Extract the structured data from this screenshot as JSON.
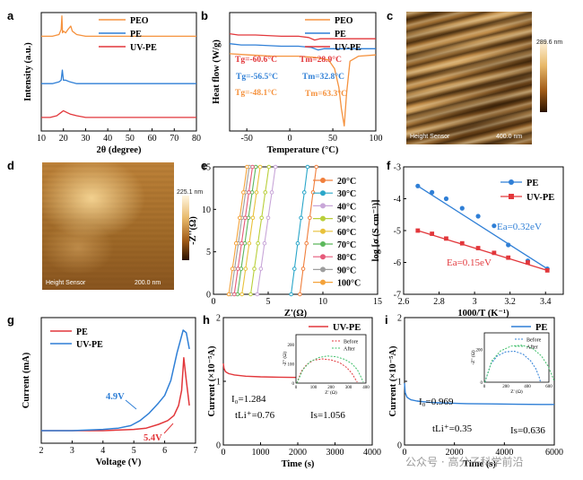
{
  "panels": {
    "a": "a",
    "b": "b",
    "c": "c",
    "d": "d",
    "e": "e",
    "f": "f",
    "g": "g",
    "h": "h",
    "i": "i"
  },
  "afm": {
    "c_scale": "289.6 nm",
    "c_caption": "Height Sensor",
    "c_bar": "400.0 nm",
    "d_scale": "225.1 nm",
    "d_caption": "Height Sensor",
    "d_bar": "200.0 nm"
  },
  "watermark": "公众号 · 高分子科学前沿",
  "chart_data": [
    {
      "id": "a",
      "type": "line",
      "xlabel": "2θ (degree)",
      "ylabel": "Intensity (a.u.)",
      "xlim": [
        10,
        80
      ],
      "xticks": [
        10,
        20,
        30,
        40,
        50,
        60,
        70,
        80
      ],
      "legend": [
        "PEO",
        "PE",
        "UV-PE"
      ],
      "colors": [
        "#f5923e",
        "#2f7fd6",
        "#e2373b"
      ],
      "series": [
        {
          "name": "PEO",
          "x": [
            10,
            15,
            18,
            19,
            19.3,
            19.6,
            20,
            21,
            22,
            23.3,
            24,
            26,
            30,
            40,
            50,
            60,
            70,
            80
          ],
          "y": [
            0.86,
            0.86,
            0.87,
            0.9,
            0.98,
            0.88,
            0.89,
            0.88,
            0.9,
            0.92,
            0.89,
            0.87,
            0.86,
            0.86,
            0.86,
            0.86,
            0.86,
            0.86
          ]
        },
        {
          "name": "PE",
          "x": [
            10,
            15,
            18,
            19,
            19.5,
            20,
            21,
            23,
            26,
            30,
            40,
            50,
            60,
            70,
            80
          ],
          "y": [
            0.58,
            0.58,
            0.59,
            0.6,
            0.66,
            0.6,
            0.6,
            0.59,
            0.58,
            0.58,
            0.58,
            0.58,
            0.58,
            0.58,
            0.58
          ]
        },
        {
          "name": "UV-PE",
          "x": [
            10,
            14,
            17,
            19,
            20,
            21.5,
            23,
            26,
            30,
            40,
            50,
            60,
            70,
            80
          ],
          "y": [
            0.38,
            0.38,
            0.39,
            0.41,
            0.42,
            0.41,
            0.4,
            0.39,
            0.38,
            0.38,
            0.38,
            0.38,
            0.38,
            0.38
          ]
        }
      ]
    },
    {
      "id": "b",
      "type": "line",
      "xlabel": "Temperature (°C)",
      "ylabel": "Heat flow (W/g)",
      "xlim": [
        -70,
        100
      ],
      "xticks": [
        -50,
        0,
        50,
        100
      ],
      "legend": [
        "PEO",
        "PE",
        "UV-PE"
      ],
      "colors": [
        "#f5923e",
        "#2f7fd6",
        "#e2373b"
      ],
      "annotations": [
        {
          "text": "Tg=-60.6°C",
          "color": "#e2373b"
        },
        {
          "text": "Tm=28.9°C",
          "color": "#e2373b"
        },
        {
          "text": "Tg=-56.5°C",
          "color": "#2f7fd6"
        },
        {
          "text": "Tm=32.8°C",
          "color": "#2f7fd6"
        },
        {
          "text": "Tg=-48.1°C",
          "color": "#f5923e"
        },
        {
          "text": "Tm=63.3°C",
          "color": "#f5923e"
        }
      ],
      "series": [
        {
          "name": "UV-PE",
          "x": [
            -70,
            -60,
            -40,
            -10,
            10,
            22,
            28.9,
            35,
            50,
            70,
            100
          ],
          "y": [
            0.78,
            0.77,
            0.77,
            0.76,
            0.76,
            0.75,
            0.73,
            0.74,
            0.74,
            0.74,
            0.74
          ]
        },
        {
          "name": "PE",
          "x": [
            -70,
            -56.5,
            -40,
            -10,
            10,
            25,
            32.8,
            40,
            60,
            80,
            100
          ],
          "y": [
            0.7,
            0.69,
            0.69,
            0.68,
            0.68,
            0.67,
            0.65,
            0.66,
            0.66,
            0.66,
            0.66
          ]
        },
        {
          "name": "PEO",
          "x": [
            -70,
            -48.1,
            -20,
            10,
            30,
            45,
            52,
            57,
            60,
            63.3,
            66,
            70,
            80,
            100
          ],
          "y": [
            0.62,
            0.61,
            0.6,
            0.6,
            0.59,
            0.57,
            0.5,
            0.35,
            0.18,
            0.04,
            0.3,
            0.56,
            0.6,
            0.61
          ]
        }
      ]
    },
    {
      "id": "e",
      "type": "line",
      "xlabel": "Z'(Ω)",
      "ylabel": "-Z''(Ω)",
      "xlim": [
        0,
        15
      ],
      "ylim": [
        0,
        15
      ],
      "xticks": [
        0,
        5,
        10,
        15
      ],
      "yticks": [
        0,
        5,
        10,
        15
      ],
      "legend_position": "right",
      "series": [
        {
          "name": "20°C",
          "color": "#f07f3c",
          "x0": 7.9,
          "slope": 10.0
        },
        {
          "name": "30°C",
          "color": "#2aa6c9",
          "x0": 7.1,
          "slope": 10.0
        },
        {
          "name": "40°C",
          "color": "#c8a6d8",
          "x0": 4.0,
          "slope": 9.0
        },
        {
          "name": "50°C",
          "color": "#b9cf3a",
          "x0": 3.4,
          "slope": 9.0
        },
        {
          "name": "60°C",
          "color": "#e8c13a",
          "x0": 2.6,
          "slope": 9.0
        },
        {
          "name": "70°C",
          "color": "#5cb85c",
          "x0": 2.2,
          "slope": 9.0
        },
        {
          "name": "80°C",
          "color": "#e65a7a",
          "x0": 1.9,
          "slope": 9.0
        },
        {
          "name": "90°C",
          "color": "#9e9e9e",
          "x0": 1.6,
          "slope": 9.0
        },
        {
          "name": "100°C",
          "color": "#f4a23a",
          "x0": 1.4,
          "slope": 9.0
        }
      ]
    },
    {
      "id": "f",
      "type": "scatter",
      "xlabel": "1000/T (K⁻¹)",
      "ylabel": "log [σ (S cm⁻¹)]",
      "xlim": [
        2.6,
        3.5
      ],
      "ylim": [
        -7,
        -3
      ],
      "xticks": [
        2.6,
        2.8,
        3.0,
        3.2,
        3.4
      ],
      "yticks": [
        -3,
        -4,
        -5,
        -6,
        -7
      ],
      "legend": [
        "PE",
        "UV-PE"
      ],
      "annotations": [
        {
          "text": "Ea=0.32eV",
          "color": "#2f7fd6"
        },
        {
          "text": "Ea=0.15eV",
          "color": "#e2373b"
        }
      ],
      "series": [
        {
          "name": "PE",
          "color": "#2f7fd6",
          "x": [
            2.68,
            2.76,
            2.84,
            2.93,
            3.02,
            3.11,
            3.19,
            3.3,
            3.41
          ],
          "y": [
            -3.6,
            -3.8,
            -4.0,
            -4.3,
            -4.55,
            -4.85,
            -5.45,
            -5.95,
            -6.2
          ]
        },
        {
          "name": "UV-PE",
          "color": "#e2373b",
          "x": [
            2.68,
            2.76,
            2.84,
            2.93,
            3.02,
            3.11,
            3.19,
            3.3,
            3.41
          ],
          "y": [
            -5.0,
            -5.1,
            -5.25,
            -5.4,
            -5.55,
            -5.7,
            -5.85,
            -6.0,
            -6.25
          ]
        }
      ]
    },
    {
      "id": "g",
      "type": "line",
      "xlabel": "Voltage (V)",
      "ylabel": "Current (mA)",
      "xlim": [
        2,
        7
      ],
      "xticks": [
        2,
        3,
        4,
        5,
        6,
        7
      ],
      "legend": [
        "PE",
        "UV-PE"
      ],
      "annotations": [
        {
          "text": "4.9V",
          "color": "#2f7fd6"
        },
        {
          "text": "5.4V",
          "color": "#e2373b"
        }
      ],
      "series": [
        {
          "name": "PE",
          "color": "#e2373b",
          "x": [
            2,
            3,
            4,
            5,
            5.4,
            5.8,
            6.1,
            6.3,
            6.45,
            6.55,
            6.62,
            6.7,
            6.8
          ],
          "y": [
            0,
            0,
            0,
            0.01,
            0.02,
            0.05,
            0.08,
            0.12,
            0.2,
            0.32,
            0.58,
            0.4,
            0.2
          ]
        },
        {
          "name": "UV-PE",
          "color": "#2f7fd6",
          "x": [
            2,
            3,
            4,
            4.5,
            4.9,
            5.2,
            5.5,
            5.8,
            6.0,
            6.2,
            6.4,
            6.6,
            6.7,
            6.8
          ],
          "y": [
            0,
            0,
            0.01,
            0.02,
            0.04,
            0.08,
            0.14,
            0.22,
            0.28,
            0.4,
            0.62,
            0.8,
            0.78,
            0.65
          ]
        }
      ]
    },
    {
      "id": "h",
      "type": "line",
      "xlabel": "Time (s)",
      "ylabel": "Current (×10⁻⁵A)",
      "xlim": [
        0,
        4000
      ],
      "ylim": [
        0,
        2
      ],
      "xticks": [
        0,
        1000,
        2000,
        3000,
        4000
      ],
      "yticks": [
        0,
        1,
        2
      ],
      "legend": [
        "UV-PE"
      ],
      "annotations": [
        {
          "text": "I₀=1.284"
        },
        {
          "text": "tLi⁺=0.76"
        },
        {
          "text": "Is=1.056"
        }
      ],
      "series": [
        {
          "name": "UV-PE",
          "color": "#e2373b",
          "x": [
            0,
            20,
            60,
            150,
            300,
            600,
            1000,
            1500,
            2000,
            2500,
            3000,
            3500
          ],
          "y": [
            1.28,
            1.2,
            1.15,
            1.12,
            1.1,
            1.08,
            1.07,
            1.065,
            1.06,
            1.058,
            1.056,
            1.056
          ]
        }
      ],
      "inset": {
        "xlabel": "Z' (Ω)",
        "ylabel": "-Z'' (Ω)",
        "xticks": [
          0,
          100,
          200,
          300,
          400
        ],
        "yticks": [
          0,
          100,
          200
        ],
        "legend": [
          "Before",
          "After"
        ],
        "series": [
          {
            "name": "Before",
            "color": "#e2373b",
            "x": [
              5,
              30,
              60,
              100,
              150,
              200,
              250,
              290,
              320,
              340,
              350
            ],
            "y": [
              0,
              60,
              95,
              118,
              125,
              120,
              105,
              80,
              50,
              20,
              5
            ]
          },
          {
            "name": "After",
            "color": "#3fbf6a",
            "x": [
              5,
              40,
              80,
              130,
              180,
              230,
              280,
              320,
              350,
              370,
              385
            ],
            "y": [
              0,
              70,
              110,
              132,
              140,
              136,
              122,
              100,
              70,
              35,
              5
            ]
          }
        ]
      }
    },
    {
      "id": "i",
      "type": "line",
      "xlabel": "Time (s)",
      "ylabel": "Current (×10⁻⁵A)",
      "xlim": [
        0,
        6000
      ],
      "ylim": [
        0,
        2
      ],
      "xticks": [
        0,
        2000,
        4000,
        6000
      ],
      "yticks": [
        0,
        1,
        2
      ],
      "legend": [
        "PE"
      ],
      "annotations": [
        {
          "text": "I₀=0.969"
        },
        {
          "text": "tLi⁺=0.35"
        },
        {
          "text": "Is=0.636"
        }
      ],
      "series": [
        {
          "name": "PE",
          "color": "#2f7fd6",
          "x": [
            0,
            30,
            100,
            250,
            500,
            1000,
            1500,
            2500,
            3500,
            4500,
            5500,
            6000
          ],
          "y": [
            0.97,
            0.82,
            0.75,
            0.71,
            0.69,
            0.67,
            0.66,
            0.65,
            0.645,
            0.64,
            0.637,
            0.636
          ]
        }
      ],
      "inset": {
        "xlabel": "Z' (Ω)",
        "ylabel": "-Z'' (Ω)",
        "xticks": [
          0,
          200,
          400,
          600
        ],
        "yticks": [
          0,
          200
        ],
        "legend": [
          "Before",
          "After"
        ],
        "series": [
          {
            "name": "Before",
            "color": "#2f7fd6",
            "x": [
              5,
              60,
              120,
              200,
              280,
              360,
              430,
              480,
              510,
              520
            ],
            "y": [
              0,
              110,
              160,
              185,
              188,
              170,
              130,
              80,
              30,
              5
            ]
          },
          {
            "name": "After",
            "color": "#3fbf6a",
            "x": [
              5,
              70,
              150,
              250,
              350,
              450,
              530,
              590,
              630,
              650
            ],
            "y": [
              0,
              130,
              190,
              220,
              225,
              205,
              160,
              100,
              40,
              5
            ]
          }
        ]
      }
    }
  ]
}
